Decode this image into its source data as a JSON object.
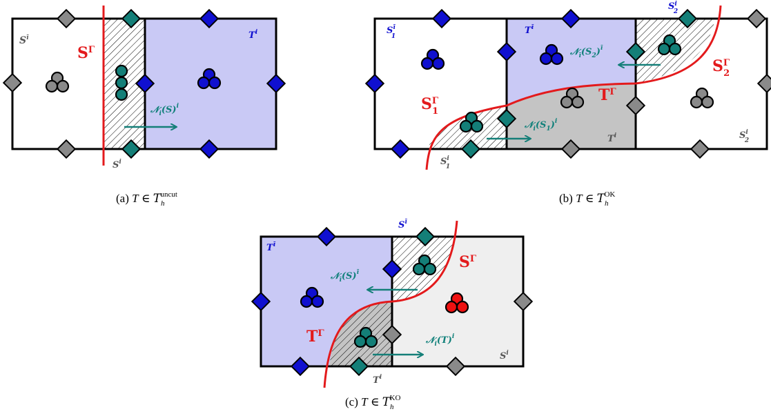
{
  "colors": {
    "blue_fill": "#c9c9f5",
    "grey_fill": "#c4c4c4",
    "light_fill": "#efefef",
    "interface": "#e31a1c",
    "dof_blue": "#1010d0",
    "dof_teal": "#147f78",
    "dof_grey": "#8a8a8a",
    "dof_red": "#ee1111"
  },
  "panel_a": {
    "caption_prefix": "(a) ",
    "caption_var": "T",
    "caption_in": " ∈ ",
    "caption_set": "T",
    "caption_sub": "h",
    "caption_sup": "uncut",
    "label_S_ibar": "S",
    "label_S_ibar_sup": "ī",
    "label_S_gamma": "S",
    "label_S_gamma_sup": "Γ",
    "label_T_i": "T",
    "label_T_i_sup": "i",
    "label_S_i": "S",
    "label_S_i_sup": "i",
    "label_N": "𝒩",
    "label_N_sub": "i",
    "label_N_arg": "(S)",
    "label_N_sup": "i"
  },
  "panel_b": {
    "caption_prefix": "(b) ",
    "caption_var": "T",
    "caption_in": " ∈ ",
    "caption_set": "T",
    "caption_sub": "h",
    "caption_sup": "OK",
    "label_S1_ibar": "S",
    "label_S1_ibar_sub": "1",
    "label_S1_ibar_sup": "ī",
    "label_T_ibar": "T",
    "label_T_ibar_sup": "ī",
    "label_S2_i_top": "S",
    "label_S2_i_top_sub": "2",
    "label_S2_i_top_sup": "i",
    "label_N2": "𝒩",
    "label_N2_sub": "ī",
    "label_N2_arg": "(S",
    "label_N2_arg_sub": "2",
    "label_N2_arg_end": ")",
    "label_N2_sup": "ī",
    "label_S2_gamma": "S",
    "label_S2_gamma_sub": "2",
    "label_S2_gamma_sup": "Γ",
    "label_S1_gamma": "S",
    "label_S1_gamma_sub": "1",
    "label_S1_gamma_sup": "Γ",
    "label_T_gamma": "T",
    "label_T_gamma_sup": "Γ",
    "label_N1": "𝒩",
    "label_N1_sub": "i",
    "label_N1_arg": "(S",
    "label_N1_arg_sub": "1",
    "label_N1_arg_end": ")",
    "label_N1_sup": "i",
    "label_T_i": "T",
    "label_T_i_sup": "i",
    "label_S2_i": "S",
    "label_S2_i_sub": "2",
    "label_S2_i_sup": "i",
    "label_S1_i": "S",
    "label_S1_i_sub": "1",
    "label_S1_i_sup": "i"
  },
  "panel_c": {
    "caption_prefix": "(c) ",
    "caption_var": "T",
    "caption_in": " ∈ ",
    "caption_set": "T",
    "caption_sub": "h",
    "caption_sup": "KO",
    "label_S_ibar": "S",
    "label_S_ibar_sup": "ī",
    "label_T_ibar": "T",
    "label_T_ibar_sup": "ī",
    "label_S_gamma": "S",
    "label_S_gamma_sup": "Γ",
    "label_N1": "𝒩",
    "label_N1_sub": "ī",
    "label_N1_arg": "(S)",
    "label_N1_sup": "ī",
    "label_T_gamma": "T",
    "label_T_gamma_sup": "Γ",
    "label_N2": "𝒩",
    "label_N2_sub": "i",
    "label_N2_arg": "(T)",
    "label_N2_sup": "i",
    "label_S_i": "S",
    "label_S_i_sup": "i",
    "label_T_i": "T",
    "label_T_i_sup": "i"
  }
}
